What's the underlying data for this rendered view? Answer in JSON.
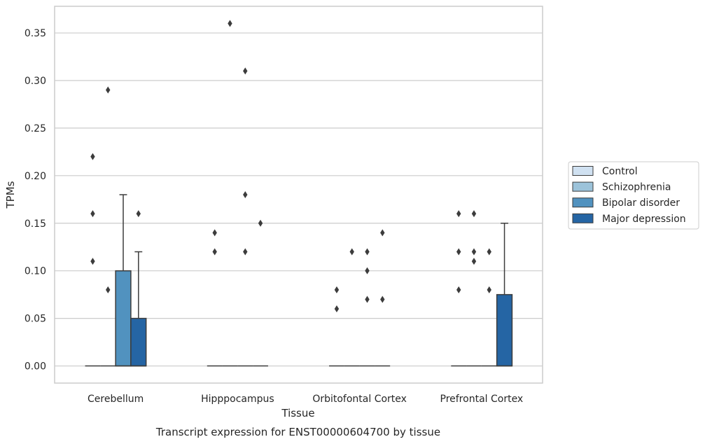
{
  "chart_data": {
    "type": "boxplot",
    "title": "Transcript expression for ENST00000604700 by tissue",
    "xlabel": "Tissue",
    "ylabel": "TPMs",
    "ylim": [
      -0.018,
      0.378
    ],
    "yticks": [
      "0.00",
      "0.05",
      "0.10",
      "0.15",
      "0.20",
      "0.25",
      "0.30",
      "0.35"
    ],
    "grid": "horizontal",
    "legend_position": "right",
    "categories": [
      "Cerebellum",
      "Hipppocampus",
      "Orbitofontal Cortex",
      "Prefrontal Cortex"
    ],
    "series": [
      {
        "name": "Control",
        "color": "#d0e1f1",
        "boxes": [
          {
            "q1": 0,
            "median": 0,
            "q3": 0,
            "whisker_high": 0,
            "outliers": [
              0.11,
              0.16,
              0.22
            ]
          },
          {
            "q1": 0,
            "median": 0,
            "q3": 0,
            "whisker_high": 0,
            "outliers": [
              0.12,
              0.14
            ]
          },
          {
            "q1": 0,
            "median": 0,
            "q3": 0,
            "whisker_high": 0,
            "outliers": [
              0.06,
              0.08
            ]
          },
          {
            "q1": 0,
            "median": 0,
            "q3": 0,
            "whisker_high": 0,
            "outliers": [
              0.08,
              0.12,
              0.16
            ]
          }
        ]
      },
      {
        "name": "Schizophrenia",
        "color": "#9cc3da",
        "boxes": [
          {
            "q1": 0,
            "median": 0,
            "q3": 0,
            "whisker_high": 0,
            "outliers": [
              0.08,
              0.29
            ]
          },
          {
            "q1": 0,
            "median": 0,
            "q3": 0,
            "whisker_high": 0,
            "outliers": [
              0.36
            ]
          },
          {
            "q1": 0,
            "median": 0,
            "q3": 0,
            "whisker_high": 0,
            "outliers": [
              0.12
            ]
          },
          {
            "q1": 0,
            "median": 0,
            "q3": 0,
            "whisker_high": 0,
            "outliers": [
              0.11,
              0.12,
              0.16
            ]
          }
        ]
      },
      {
        "name": "Bipolar disorder",
        "color": "#5192bf",
        "boxes": [
          {
            "q1": 0,
            "median": 0,
            "q3": 0.1,
            "whisker_high": 0.18,
            "outliers": []
          },
          {
            "q1": 0,
            "median": 0,
            "q3": 0,
            "whisker_high": 0,
            "outliers": [
              0.12,
              0.18,
              0.31
            ]
          },
          {
            "q1": 0,
            "median": 0,
            "q3": 0,
            "whisker_high": 0,
            "outliers": [
              0.07,
              0.1,
              0.12
            ]
          },
          {
            "q1": 0,
            "median": 0,
            "q3": 0,
            "whisker_high": 0,
            "outliers": [
              0.08,
              0.12
            ]
          }
        ]
      },
      {
        "name": "Major depression",
        "color": "#2565a4",
        "boxes": [
          {
            "q1": 0,
            "median": 0,
            "q3": 0.05,
            "whisker_high": 0.12,
            "outliers": [
              0.16
            ]
          },
          {
            "q1": 0,
            "median": 0,
            "q3": 0,
            "whisker_high": 0,
            "outliers": [
              0.15
            ]
          },
          {
            "q1": 0,
            "median": 0,
            "q3": 0,
            "whisker_high": 0,
            "outliers": [
              0.07,
              0.14
            ]
          },
          {
            "q1": 0,
            "median": 0,
            "q3": 0.075,
            "whisker_high": 0.15,
            "outliers": []
          }
        ]
      }
    ]
  }
}
